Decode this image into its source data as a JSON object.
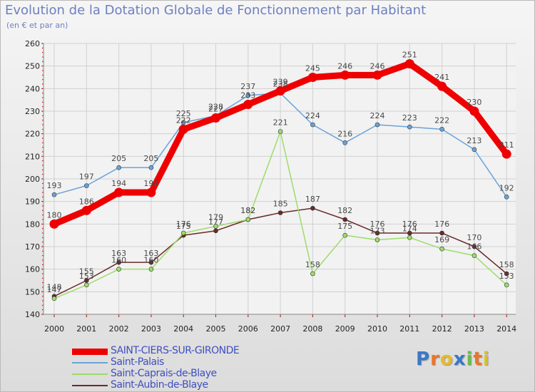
{
  "chart_data": {
    "type": "line",
    "title": "Evolution de la Dotation Globale de Fonctionnement par Habitant",
    "subtitle": "(en € et par an)",
    "xlabel": "",
    "ylabel": "",
    "ylim": [
      140,
      260
    ],
    "yticks": [
      140,
      150,
      160,
      170,
      180,
      190,
      200,
      210,
      220,
      230,
      240,
      250,
      260
    ],
    "categories": [
      "2000",
      "2001",
      "2002",
      "2003",
      "2004",
      "2005",
      "2006",
      "2007",
      "2008",
      "2009",
      "2010",
      "2011",
      "2012",
      "2013",
      "2014"
    ],
    "legend_position": "bottom-left",
    "grid": true,
    "series": [
      {
        "name": "SAINT-CIERS-SUR-GIRONDE",
        "color": "#ee0000",
        "values": [
          180,
          186,
          194,
          194,
          222,
          227,
          233,
          239,
          245,
          246,
          246,
          251,
          241,
          230,
          211
        ]
      },
      {
        "name": "Saint-Palais",
        "color": "#6aa3d8",
        "values": [
          193,
          197,
          205,
          205,
          225,
          228,
          237,
          238,
          224,
          216,
          224,
          223,
          222,
          213,
          192
        ]
      },
      {
        "name": "Saint-Caprais-de-Blaye",
        "color": "#9ddc6a",
        "values": [
          147,
          153,
          160,
          160,
          176,
          179,
          182,
          221,
          158,
          175,
          173,
          174,
          169,
          166,
          153
        ]
      },
      {
        "name": "Saint-Aubin-de-Blaye",
        "color": "#6b2a2a",
        "values": [
          148,
          155,
          163,
          163,
          175,
          177,
          182,
          185,
          187,
          182,
          176,
          176,
          176,
          170,
          158
        ]
      }
    ]
  },
  "brand": {
    "name": "Proxiti",
    "letters": [
      "P",
      "r",
      "o",
      "x",
      "i",
      "t",
      "i"
    ],
    "colors": [
      "#3a78c8",
      "#e8762b",
      "#e8b92b",
      "#3a78c8",
      "#6cbd45",
      "#e8762b",
      "#d8c02b"
    ]
  }
}
